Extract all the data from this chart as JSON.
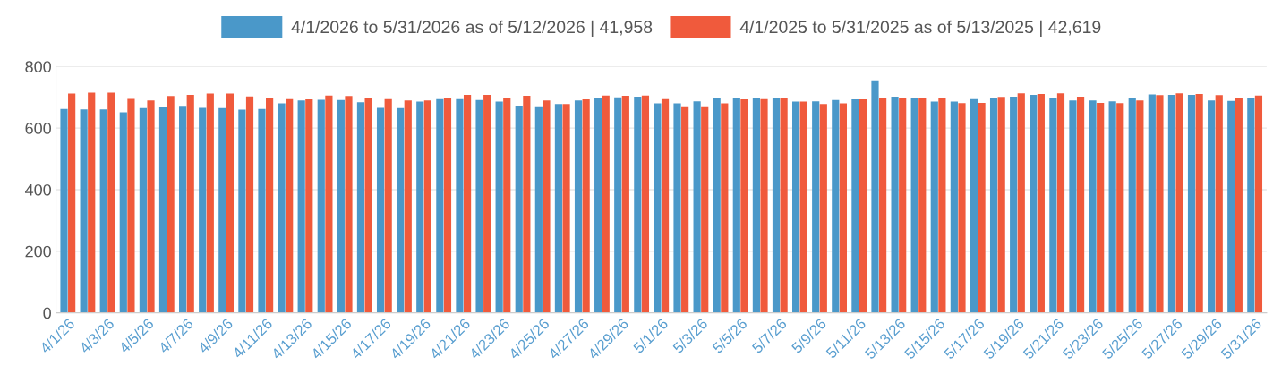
{
  "chart_data": {
    "type": "bar",
    "categories": [
      "4/1/26",
      null,
      "4/3/26",
      null,
      "4/5/26",
      null,
      "4/7/26",
      null,
      "4/9/26",
      null,
      "4/11/26",
      null,
      "4/13/26",
      null,
      "4/15/26",
      null,
      "4/17/26",
      null,
      "4/19/26",
      null,
      "4/21/26",
      null,
      "4/23/26",
      null,
      "4/25/26",
      null,
      "4/27/26",
      null,
      "4/29/26",
      null,
      "5/1/26",
      null,
      "5/3/26",
      null,
      "5/5/26",
      null,
      "5/7/26",
      null,
      "5/9/26",
      null,
      "5/11/26",
      null,
      "5/13/26",
      null,
      "5/15/26",
      null,
      "5/17/26",
      null,
      "5/19/26",
      null,
      "5/21/26",
      null,
      "5/23/26",
      null,
      "5/25/26",
      null,
      "5/27/26",
      null,
      "5/29/26",
      null,
      "5/31/26"
    ],
    "series": [
      {
        "name": "4/1/2026 to 5/31/2026 as of 5/12/2026 | 41,958",
        "color": "#4a98c9",
        "values": [
          662,
          661,
          661,
          651,
          665,
          667,
          669,
          666,
          665,
          660,
          662,
          680,
          690,
          692,
          691,
          684,
          666,
          665,
          686,
          694,
          694,
          691,
          686,
          673,
          668,
          678,
          690,
          697,
          700,
          702,
          680,
          680,
          687,
          698,
          698,
          696,
          699,
          686,
          687,
          691,
          693,
          755,
          702,
          699,
          686,
          686,
          694,
          699,
          702,
          708,
          699,
          690,
          690,
          687,
          699,
          709,
          708,
          708,
          690,
          688,
          699
        ]
      },
      {
        "name": "4/1/2025 to 5/31/2025 as of 5/13/2025 | 42,619",
        "color": "#f05a3c",
        "values": [
          712,
          715,
          715,
          695,
          690,
          704,
          708,
          712,
          712,
          703,
          697,
          694,
          693,
          706,
          704,
          697,
          694,
          690,
          690,
          699,
          708,
          708,
          699,
          705,
          690,
          678,
          693,
          706,
          705,
          706,
          694,
          668,
          668,
          680,
          693,
          694,
          699,
          686,
          678,
          680,
          693,
          699,
          699,
          699,
          697,
          681,
          682,
          701,
          713,
          711,
          713,
          702,
          682,
          681,
          690,
          707,
          713,
          711,
          707,
          699,
          706
        ]
      }
    ],
    "ylim": [
      0,
      800
    ],
    "yticks": [
      0,
      200,
      400,
      600,
      800
    ],
    "grid": "y",
    "legend": "top"
  }
}
